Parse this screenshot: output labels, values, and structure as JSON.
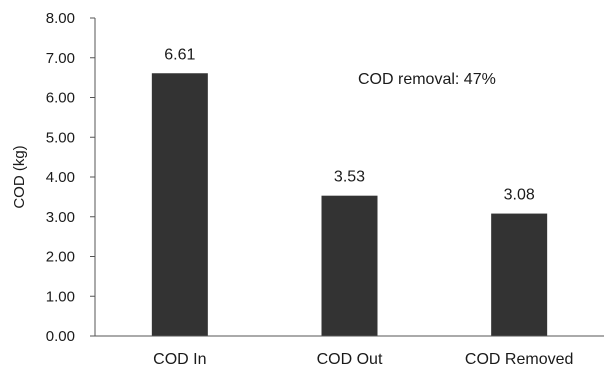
{
  "chart_data": {
    "type": "bar",
    "categories": [
      "COD In",
      "COD Out",
      "COD Removed"
    ],
    "values": [
      6.61,
      3.53,
      3.08
    ],
    "data_labels": [
      "6.61",
      "3.53",
      "3.08"
    ],
    "ylabel": "COD (kg)",
    "xlabel": "",
    "ylim": [
      0,
      8
    ],
    "yticks": [
      "0.00",
      "1.00",
      "2.00",
      "3.00",
      "4.00",
      "5.00",
      "6.00",
      "7.00",
      "8.00"
    ],
    "annotation": "COD removal: 47%",
    "bar_color": "#333333",
    "grid": false,
    "legend": "none"
  }
}
